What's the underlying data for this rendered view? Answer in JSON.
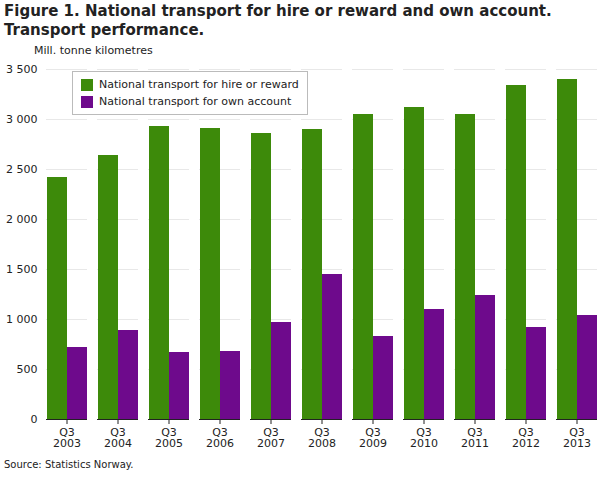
{
  "chart_data": {
    "type": "bar",
    "title": "Figure 1. National transport for hire or reward and own account. Transport performance.",
    "y_label": "Mill. tonne kilometres",
    "source": "Source: Statistics Norway.",
    "categories": [
      "Q3\n2003",
      "Q3\n2004",
      "Q3\n2005",
      "Q3\n2006",
      "Q3\n2007",
      "Q3\n2008",
      "Q3\n2009",
      "Q3\n2010",
      "Q3\n2011",
      "Q3\n2012",
      "Q3\n2013"
    ],
    "series": [
      {
        "name": "National transport for hire or reward",
        "color": "#3d8a0a",
        "values": [
          2420,
          2640,
          2930,
          2910,
          2860,
          2900,
          3050,
          3120,
          3050,
          3340,
          3400
        ]
      },
      {
        "name": "National transport for own account",
        "color": "#6e0a8c",
        "values": [
          720,
          890,
          670,
          680,
          970,
          1450,
          830,
          1100,
          1240,
          920,
          1040
        ]
      }
    ],
    "ylim": [
      0,
      3500
    ],
    "yticks": [
      0,
      500,
      {
        "value": 1000,
        "label": "1 000"
      },
      {
        "value": 1500,
        "label": "1 500"
      },
      {
        "value": 2000,
        "label": "2 000"
      },
      {
        "value": 2500,
        "label": "2 500"
      },
      {
        "value": 3000,
        "label": "3 000"
      },
      {
        "value": 3500,
        "label": "3 500"
      }
    ],
    "grid": true,
    "legend": "top-left"
  }
}
